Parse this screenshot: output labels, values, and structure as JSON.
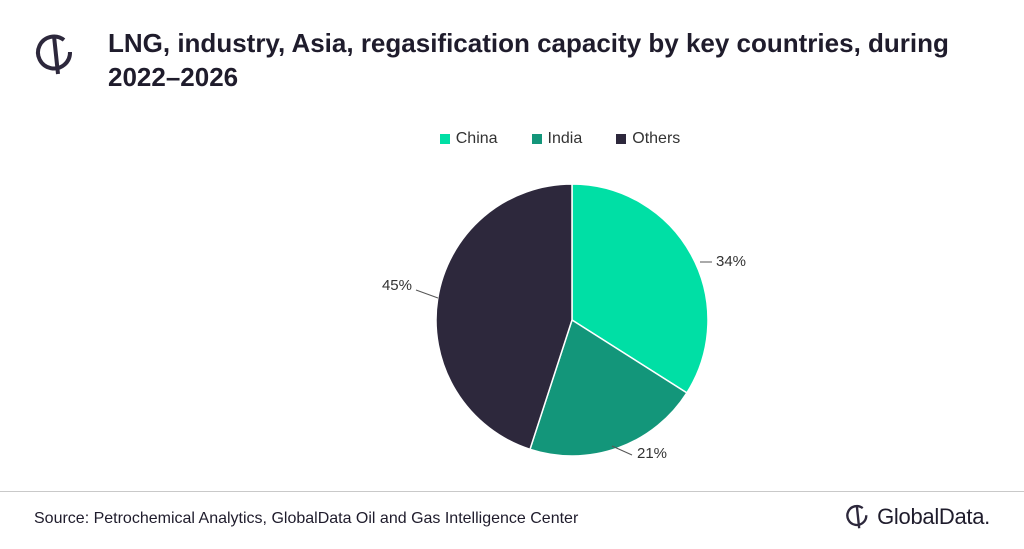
{
  "header": {
    "title": "LNG, industry, Asia, regasification capacity by key countries, during 2022–2026"
  },
  "footer": {
    "source": "Source: Petrochemical Analytics, GlobalData Oil and Gas Intelligence Center",
    "brand": "GlobalData."
  },
  "icons": {
    "header_logo": "globaldata-logo-icon",
    "footer_logo": "globaldata-logo-icon"
  },
  "chart_data": {
    "type": "pie",
    "title": "LNG, industry, Asia, regasification capacity by key countries, during 2022–2026",
    "legend_position": "top",
    "slices": [
      {
        "label": "China",
        "value": 34,
        "display": "34%",
        "color": "#00dfa5"
      },
      {
        "label": "India",
        "value": 21,
        "display": "21%",
        "color": "#13967a"
      },
      {
        "label": "Others",
        "value": 45,
        "display": "45%",
        "color": "#2d283c"
      }
    ]
  }
}
